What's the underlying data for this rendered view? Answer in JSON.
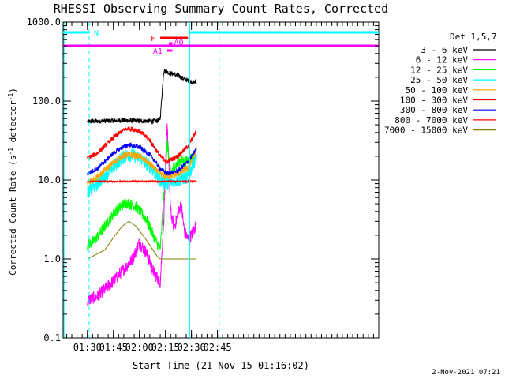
{
  "chart_data": {
    "type": "line",
    "title": "RHESSI Observing Summary Count Rates, Corrected",
    "xlabel": "Start Time (21-Nov-15 01:16:02)",
    "ylabel": "Corrected Count Rate (s",
    "ylabel_sup": "-1",
    "ylabel_mid": " detector",
    "ylabel_end": ")",
    "y_scale": "log",
    "ylim": [
      0.1,
      1000
    ],
    "y_ticks": [
      {
        "v": 0.1,
        "label": "0.1"
      },
      {
        "v": 1,
        "label": "1.0"
      },
      {
        "v": 10,
        "label": "10.0"
      },
      {
        "v": 100,
        "label": "100.0"
      },
      {
        "v": 1000,
        "label": "1000.0"
      }
    ],
    "xlim_min": [
      76,
      258
    ],
    "x_ticks": [
      {
        "t": 90,
        "label": "01:30"
      },
      {
        "t": 105,
        "label": "01:45"
      },
      {
        "t": 120,
        "label": "02:00"
      },
      {
        "t": 135,
        "label": "02:15"
      },
      {
        "t": 150,
        "label": "02:30"
      },
      {
        "t": 165,
        "label": "02:45"
      }
    ],
    "legend_title": "Det 1,5,7",
    "legend_position": "right",
    "series": [
      {
        "name": "3 - 6 keV",
        "color": "#000000",
        "noise": 0.03,
        "points": [
          [
            90,
            55
          ],
          [
            100,
            56
          ],
          [
            110,
            57
          ],
          [
            120,
            56
          ],
          [
            130,
            56
          ],
          [
            132,
            60
          ],
          [
            134,
            240
          ],
          [
            138,
            225
          ],
          [
            142,
            210
          ],
          [
            146,
            190
          ],
          [
            150,
            175
          ],
          [
            153,
            172
          ]
        ]
      },
      {
        "name": "6 - 12 keV",
        "color": "#ff00ff",
        "noise": 0.08,
        "points": [
          [
            90,
            0.3
          ],
          [
            96,
            0.34
          ],
          [
            104,
            0.5
          ],
          [
            110,
            0.7
          ],
          [
            116,
            1.0
          ],
          [
            120,
            1.6
          ],
          [
            124,
            1.2
          ],
          [
            128,
            0.7
          ],
          [
            132,
            0.5
          ],
          [
            134,
            3.0
          ],
          [
            136,
            55
          ],
          [
            138,
            4
          ],
          [
            140,
            2.5
          ],
          [
            142,
            3.5
          ],
          [
            144,
            5
          ],
          [
            146,
            2.2
          ],
          [
            148,
            1.8
          ],
          [
            150,
            2.0
          ],
          [
            153,
            2.8
          ]
        ]
      },
      {
        "name": "12 - 25 keV",
        "color": "#00ff00",
        "noise": 0.07,
        "points": [
          [
            90,
            1.5
          ],
          [
            94,
            1.7
          ],
          [
            100,
            2.6
          ],
          [
            106,
            4.0
          ],
          [
            112,
            5.2
          ],
          [
            118,
            4.6
          ],
          [
            124,
            3.2
          ],
          [
            128,
            2.0
          ],
          [
            132,
            1.3
          ],
          [
            134,
            6
          ],
          [
            136,
            30
          ],
          [
            138,
            12
          ],
          [
            140,
            15
          ],
          [
            142,
            16
          ],
          [
            144,
            18
          ],
          [
            146,
            17
          ],
          [
            150,
            19
          ],
          [
            153,
            22
          ]
        ]
      },
      {
        "name": "25 - 50 keV",
        "color": "#00ffff",
        "noise": 0.09,
        "points": [
          [
            90,
            7
          ],
          [
            96,
            9
          ],
          [
            104,
            14
          ],
          [
            110,
            19
          ],
          [
            114,
            21
          ],
          [
            120,
            19
          ],
          [
            126,
            15
          ],
          [
            132,
            10
          ],
          [
            136,
            9
          ],
          [
            142,
            10
          ],
          [
            148,
            11
          ],
          [
            153,
            20
          ]
        ]
      },
      {
        "name": "50 - 100 keV",
        "color": "#ffa500",
        "noise": 0.04,
        "points": [
          [
            90,
            9
          ],
          [
            96,
            11
          ],
          [
            104,
            16
          ],
          [
            110,
            20
          ],
          [
            114,
            21
          ],
          [
            120,
            20
          ],
          [
            126,
            16
          ],
          [
            132,
            12
          ],
          [
            136,
            11
          ],
          [
            142,
            12
          ],
          [
            148,
            14
          ],
          [
            153,
            24
          ]
        ]
      },
      {
        "name": "100 - 300 keV",
        "color": "#ff0000",
        "noise": 0.03,
        "points": [
          [
            90,
            19
          ],
          [
            96,
            22
          ],
          [
            104,
            33
          ],
          [
            110,
            42
          ],
          [
            114,
            45
          ],
          [
            120,
            42
          ],
          [
            126,
            32
          ],
          [
            132,
            20
          ],
          [
            136,
            17
          ],
          [
            142,
            20
          ],
          [
            148,
            27
          ],
          [
            153,
            42
          ]
        ]
      },
      {
        "name": "300 - 800 keV",
        "color": "#0000ff",
        "noise": 0.03,
        "points": [
          [
            90,
            12
          ],
          [
            96,
            14
          ],
          [
            104,
            21
          ],
          [
            110,
            26
          ],
          [
            114,
            28
          ],
          [
            120,
            26
          ],
          [
            126,
            21
          ],
          [
            132,
            14
          ],
          [
            136,
            12
          ],
          [
            142,
            13
          ],
          [
            148,
            17
          ],
          [
            153,
            25
          ]
        ]
      },
      {
        "name": "800 - 7000 keV",
        "color": "#ff0000",
        "noise": 0.01,
        "points": [
          [
            90,
            9.6
          ],
          [
            153,
            9.6
          ]
        ]
      },
      {
        "name": "7000 - 15000 keV",
        "color": "#808000",
        "noise": 0.0,
        "points": [
          [
            90,
            1.0
          ],
          [
            100,
            1.3
          ],
          [
            106,
            2.0
          ],
          [
            110,
            2.6
          ],
          [
            114,
            3.0
          ],
          [
            118,
            2.6
          ],
          [
            122,
            2.0
          ],
          [
            126,
            1.5
          ],
          [
            130,
            1.1
          ],
          [
            132,
            1.0
          ],
          [
            153,
            1.0
          ]
        ]
      }
    ],
    "attenuator_bars": [
      {
        "label": "N",
        "color": "#00ffff",
        "segments": [
          [
            76,
            91
          ],
          [
            149,
            258
          ]
        ]
      },
      {
        "label": "",
        "color": "#ff00ff",
        "segments": [
          [
            76,
            258
          ]
        ]
      },
      {
        "label": "F",
        "color": "#ff0000",
        "segments": [
          [
            132,
            148
          ]
        ]
      },
      {
        "label": "AO",
        "color": "#ff00ff",
        "segments": [
          [
            137,
            139
          ]
        ]
      },
      {
        "label": "A1",
        "color": "#ff00ff",
        "segments": [
          [
            136,
            139
          ]
        ]
      }
    ],
    "vertical_markers": [
      {
        "t": 76.5,
        "color": "#00ffff",
        "style": "solid"
      },
      {
        "t": 91,
        "color": "#00ffff",
        "style": "dashed"
      },
      {
        "t": 149,
        "color": "#00ffff",
        "style": "solid"
      },
      {
        "t": 166,
        "color": "#00ffff",
        "style": "dashed"
      }
    ]
  },
  "footer": {
    "timestamp": "2-Nov-2021 07:21"
  }
}
